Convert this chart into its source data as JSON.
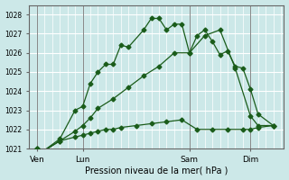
{
  "title": "Pression niveau de la mer( hPa )",
  "bg_color": "#cce8e8",
  "grid_color": "#ffffff",
  "line_color": "#1a5c1a",
  "ylim": [
    1021,
    1028.5
  ],
  "yticks": [
    1021,
    1022,
    1023,
    1024,
    1025,
    1026,
    1027,
    1028
  ],
  "day_labels": [
    "Ven",
    "Lun",
    "Sam",
    "Dim"
  ],
  "day_positions": [
    0,
    3,
    10,
    14
  ],
  "vline_color": "#888888",
  "series1_x": [
    0,
    0.3,
    1.5,
    2.5,
    3.0,
    3.5,
    4.0,
    4.5,
    5.0,
    5.5,
    6.0,
    7.0,
    7.5,
    8.0,
    8.5,
    9.0,
    9.5,
    10.0,
    10.5,
    11.0,
    11.5,
    12.0,
    12.5,
    13.0,
    13.5,
    14.0,
    14.5,
    15.5
  ],
  "series1_y": [
    1021.0,
    1020.8,
    1021.5,
    1023.0,
    1023.2,
    1024.4,
    1025.0,
    1025.4,
    1025.4,
    1026.4,
    1026.3,
    1027.2,
    1027.8,
    1027.8,
    1027.2,
    1027.5,
    1027.5,
    1026.0,
    1026.9,
    1027.2,
    1026.6,
    1025.9,
    1026.1,
    1025.3,
    1025.2,
    1024.1,
    1022.8,
    1022.2
  ],
  "series2_x": [
    0,
    0.3,
    1.5,
    2.5,
    3.0,
    3.5,
    4.0,
    4.5,
    5.0,
    5.5,
    6.5,
    7.5,
    8.5,
    9.5,
    10.5,
    11.5,
    12.5,
    13.5,
    14.0,
    14.5,
    15.5
  ],
  "series2_y": [
    1021.0,
    1020.8,
    1021.4,
    1021.6,
    1021.7,
    1021.8,
    1021.9,
    1022.0,
    1022.0,
    1022.1,
    1022.2,
    1022.3,
    1022.4,
    1022.5,
    1022.0,
    1022.0,
    1022.0,
    1022.0,
    1022.0,
    1022.1,
    1022.2
  ],
  "series3_x": [
    0,
    0.3,
    1.5,
    2.5,
    3.0,
    3.5,
    4.0,
    5.0,
    6.0,
    7.0,
    8.0,
    9.0,
    10.0,
    11.0,
    12.0,
    13.0,
    14.0,
    14.5,
    15.5
  ],
  "series3_y": [
    1021.0,
    1020.8,
    1021.4,
    1021.9,
    1022.2,
    1022.6,
    1023.1,
    1023.6,
    1024.2,
    1024.8,
    1025.3,
    1026.0,
    1026.0,
    1026.9,
    1027.2,
    1025.2,
    1022.7,
    1022.2,
    1022.2
  ],
  "xmin": -0.5,
  "xmax": 16.2,
  "markersize": 2.5,
  "ytick_fontsize": 5.5,
  "xtick_fontsize": 6.5,
  "xlabel_fontsize": 7
}
